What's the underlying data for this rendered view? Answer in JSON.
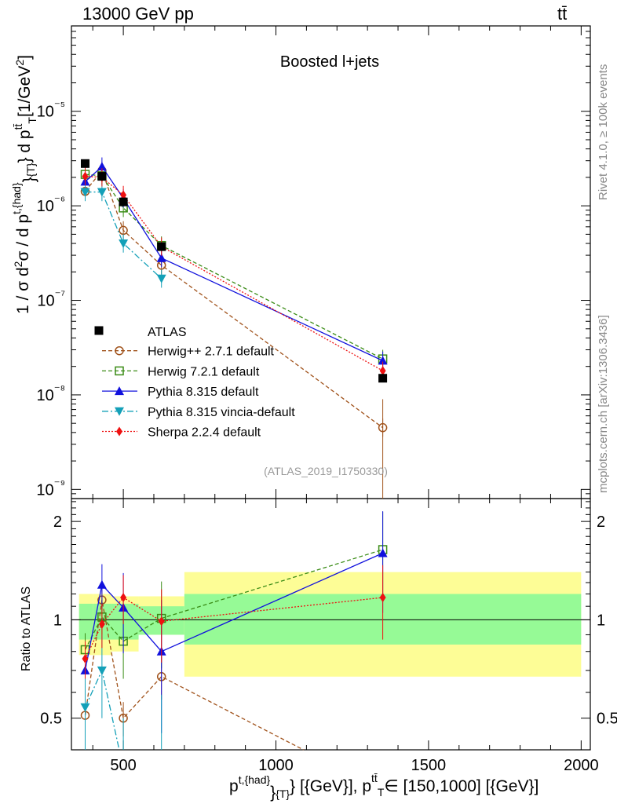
{
  "header": {
    "energy": "13000 GeV pp",
    "process": "tt̄"
  },
  "side_labels": {
    "rivet": "Rivet 4.1.0, ≥ 100k events",
    "mcplots": "mcplots.cern.ch [arXiv:1306.3436]"
  },
  "main_ylabel": "1 / σ d²σ / d p^{t,{had}}_{T} d p^{tt̄}_{T} [1/GeV²]",
  "ratio_ylabel": "Ratio to ATLAS",
  "xlabel": "p^{t,{had}}_{T} [{GeV}], p^{tt̄}_{T} ∈ [150,1000] [{GeV}]",
  "colors": {
    "atlas": "#000000",
    "herwigpp": "#a0521b",
    "herwig7": "#3a8c16",
    "pythia": "#1111dd",
    "vincia": "#14a0b8",
    "sherpa": "#ee1111",
    "band_outer": "#fdfd96",
    "band_inner": "#96fa96"
  },
  "chart_data": {
    "type": "scatter",
    "title": "Boosted l+jets",
    "analysis_tag": "(ATLAS_2019_I1750330)",
    "xlim": [
      330,
      2030
    ],
    "ylim": [
      8e-10,
      8e-05
    ],
    "yscale": "log",
    "xticks": [
      500,
      1000,
      1500,
      2000
    ],
    "xtick_labels": [
      "500",
      "1000",
      "1500",
      "2000"
    ],
    "yticks": [
      1e-09,
      1e-08,
      1e-07,
      1e-06,
      1e-05
    ],
    "ytick_labels": [
      "10⁻⁹",
      "10⁻⁸",
      "10⁻⁷",
      "10⁻⁶",
      "10⁻⁵"
    ],
    "ratio_ylim": [
      0.4,
      2.35
    ],
    "ratio_yticks": [
      0.5,
      1,
      2
    ],
    "ratio_ytick_labels": [
      "0.5",
      "1",
      "2"
    ],
    "legend_position": "lower-left",
    "atlas": {
      "name": "ATLAS",
      "x": [
        375,
        430,
        500,
        625,
        1350
      ],
      "y": [
        2.8e-06,
        2.05e-06,
        1.1e-06,
        3.7e-07,
        1.5e-08
      ],
      "bins": [
        [
          355,
          400
        ],
        [
          400,
          460
        ],
        [
          460,
          550
        ],
        [
          550,
          700
        ],
        [
          700,
          2000
        ]
      ],
      "band_inner": [
        [
          0.87,
          1.12
        ],
        [
          0.87,
          1.12
        ],
        [
          0.87,
          1.12
        ],
        [
          0.9,
          1.1
        ],
        [
          0.84,
          1.2
        ]
      ],
      "band_outer": [
        [
          0.78,
          1.2
        ],
        [
          0.78,
          1.2
        ],
        [
          0.8,
          1.18
        ],
        [
          0.9,
          1.18
        ],
        [
          0.67,
          1.4
        ]
      ]
    },
    "series": [
      {
        "name": "Herwig++ 2.7.1 default",
        "marker": "circle-open",
        "dash": "dashed",
        "x": [
          375,
          430,
          500,
          625,
          1350
        ],
        "y": [
          1.42e-06,
          2.35e-06,
          5.5e-07,
          2.35e-07,
          4.5e-09
        ],
        "ratio": [
          0.51,
          1.15,
          0.5,
          0.67,
          0.3
        ],
        "ratio_err": [
          0.07,
          0.12,
          0.06,
          0.1,
          0.1
        ]
      },
      {
        "name": "Herwig 7.2.1 default",
        "marker": "square-open",
        "dash": "dashed",
        "x": [
          375,
          430,
          500,
          625,
          1350
        ],
        "y": [
          2.15e-06,
          2.08e-06,
          9.5e-07,
          3.8e-07,
          2.4e-08
        ],
        "ratio": [
          0.81,
          1.02,
          0.86,
          1.01,
          1.64
        ],
        "ratio_err": [
          0.1,
          0.12,
          0.2,
          0.3,
          0.5
        ]
      },
      {
        "name": "Pythia 8.315 default",
        "marker": "triangle-up",
        "dash": "solid",
        "x": [
          375,
          430,
          500,
          625,
          1350
        ],
        "y": [
          1.8e-06,
          2.6e-06,
          1.2e-06,
          2.8e-07,
          2.3e-08
        ],
        "ratio": [
          0.7,
          1.28,
          1.09,
          0.8,
          1.6
        ],
        "ratio_err": [
          0.1,
          0.2,
          0.3,
          0.35,
          0.55
        ]
      },
      {
        "name": "Pythia 8.315 vincia-default",
        "marker": "triangle-down",
        "dash": "dashdot",
        "x": [
          375,
          430,
          500,
          625,
          1350
        ],
        "y": [
          1.4e-06,
          1.4e-06,
          4e-07,
          1.7e-07,
          null
        ],
        "ratio": [
          0.54,
          0.7,
          0.35,
          0.39,
          null
        ],
        "ratio_err": [
          0.15,
          0.2,
          0.15,
          0.2,
          null
        ]
      },
      {
        "name": "Sherpa 2.2.4 default",
        "marker": "diamond",
        "dash": "dotted",
        "x": [
          375,
          430,
          500,
          625,
          1350
        ],
        "y": [
          2.05e-06,
          2e-06,
          1.3e-06,
          3.7e-07,
          1.8e-08
        ],
        "ratio": [
          0.76,
          0.97,
          1.17,
          0.99,
          1.17
        ],
        "ratio_err": [
          0.1,
          0.15,
          0.2,
          0.25,
          0.3
        ]
      }
    ]
  }
}
